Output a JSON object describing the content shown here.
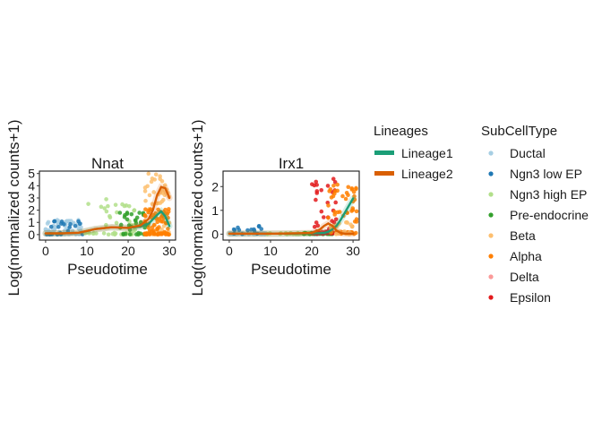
{
  "ylabel_shared": "Log(normalized counts+1)",
  "chart_data": [
    {
      "type": "scatter",
      "title": "Nnat",
      "xlabel": "Pseudotime",
      "ylabel": "Log(normalized counts+1)",
      "xlim": [
        -1.5,
        31.5
      ],
      "ylim": [
        -0.45,
        5.2
      ],
      "xticks": [
        0,
        10,
        20,
        30
      ],
      "yticks": [
        0,
        1,
        2,
        3,
        4,
        5
      ],
      "grid": false,
      "series": [
        {
          "name": "Ductal",
          "color": "#a6cee3",
          "xrange": [
            0,
            9
          ],
          "yrange": [
            0,
            1.2
          ],
          "n": 70
        },
        {
          "name": "Ngn3 low EP",
          "color": "#1f78b4",
          "xrange": [
            0,
            9
          ],
          "yrange": [
            0,
            1.1
          ],
          "n": 22
        },
        {
          "name": "Ngn3 high EP",
          "color": "#b2df8a",
          "xrange": [
            9,
            22
          ],
          "yrange": [
            0,
            3.0
          ],
          "n": 45
        },
        {
          "name": "Pre-endocrine",
          "color": "#33a02c",
          "xrange": [
            18,
            25
          ],
          "yrange": [
            0,
            2.0
          ],
          "n": 35
        },
        {
          "name": "Beta",
          "color": "#fdbf6f",
          "xrange": [
            24,
            30
          ],
          "yrange": [
            0,
            5.0
          ],
          "n": 70
        },
        {
          "name": "Alpha",
          "color": "#ff7f00",
          "xrange": [
            24,
            30
          ],
          "yrange": [
            0,
            2.2
          ],
          "n": 70
        }
      ],
      "lines": [
        {
          "name": "Lineage1",
          "color": "#1b9e77",
          "x": [
            0,
            4,
            8,
            12,
            16,
            20,
            23,
            25,
            27,
            28,
            29,
            30
          ],
          "y": [
            0.1,
            0.1,
            0.15,
            0.45,
            0.6,
            0.55,
            0.65,
            0.9,
            1.6,
            1.9,
            1.5,
            0.7
          ]
        },
        {
          "name": "Lineage2",
          "color": "#d95f02",
          "x": [
            0,
            4,
            8,
            12,
            16,
            20,
            23,
            25,
            26,
            27,
            28,
            29,
            30
          ],
          "y": [
            0.1,
            0.1,
            0.15,
            0.45,
            0.6,
            0.55,
            0.75,
            1.3,
            2.0,
            3.2,
            3.9,
            3.8,
            3.0
          ]
        }
      ]
    },
    {
      "type": "scatter",
      "title": "Irx1",
      "xlabel": "Pseudotime",
      "ylabel": "Log(normalized counts+1)",
      "xlim": [
        -1.5,
        31.5
      ],
      "ylim": [
        -0.25,
        2.65
      ],
      "xticks": [
        0,
        10,
        20,
        30
      ],
      "yticks": [
        0,
        1,
        2
      ],
      "grid": false,
      "series": [
        {
          "name": "Ductal",
          "color": "#a6cee3",
          "xrange": [
            0,
            9
          ],
          "yrange": [
            0,
            0.05
          ],
          "n": 60
        },
        {
          "name": "Ngn3 low EP",
          "color": "#1f78b4",
          "xrange": [
            0,
            9
          ],
          "yrange": [
            0,
            0.35
          ],
          "n": 14
        },
        {
          "name": "Ngn3 high EP",
          "color": "#b2df8a",
          "xrange": [
            9,
            22
          ],
          "yrange": [
            0,
            0.05
          ],
          "n": 40
        },
        {
          "name": "Pre-endocrine",
          "color": "#33a02c",
          "xrange": [
            18,
            25
          ],
          "yrange": [
            0,
            0.05
          ],
          "n": 30
        },
        {
          "name": "Epsilon",
          "color": "#e31a1c",
          "xrange": [
            20,
            26
          ],
          "yrange": [
            0,
            2.4
          ],
          "n": 50
        },
        {
          "name": "Alpha",
          "color": "#ff7f00",
          "xrange": [
            24,
            31
          ],
          "yrange": [
            0,
            2.1
          ],
          "n": 60
        },
        {
          "name": "Beta",
          "color": "#fdbf6f",
          "xrange": [
            24,
            30
          ],
          "yrange": [
            0,
            0.5
          ],
          "n": 30
        }
      ],
      "lines": [
        {
          "name": "Lineage1",
          "color": "#1b9e77",
          "x": [
            0,
            5,
            10,
            15,
            20,
            23,
            24,
            25,
            26,
            27,
            28,
            29,
            30
          ],
          "y": [
            0.02,
            0.02,
            0.02,
            0.02,
            0.03,
            0.05,
            0.1,
            0.2,
            0.35,
            0.6,
            0.9,
            1.2,
            1.5
          ]
        },
        {
          "name": "Lineage2",
          "color": "#d95f02",
          "x": [
            0,
            5,
            10,
            15,
            20,
            22,
            23,
            24,
            25,
            26,
            27,
            28,
            30
          ],
          "y": [
            0.02,
            0.02,
            0.02,
            0.03,
            0.05,
            0.2,
            0.35,
            0.45,
            0.35,
            0.15,
            0.05,
            0.02,
            0.02
          ]
        }
      ]
    }
  ],
  "legend_lineages": {
    "title": "Lineages",
    "items": [
      {
        "label": "Lineage1",
        "color": "#1b9e77"
      },
      {
        "label": "Lineage2",
        "color": "#d95f02"
      }
    ]
  },
  "legend_celltypes": {
    "title": "SubCellType",
    "items": [
      {
        "label": "Ductal",
        "color": "#a6cee3"
      },
      {
        "label": "Ngn3 low EP",
        "color": "#1f78b4"
      },
      {
        "label": "Ngn3 high EP",
        "color": "#b2df8a"
      },
      {
        "label": "Pre-endocrine",
        "color": "#33a02c"
      },
      {
        "label": "Beta",
        "color": "#fdbf6f"
      },
      {
        "label": "Alpha",
        "color": "#ff7f00"
      },
      {
        "label": "Delta",
        "color": "#fb9a99"
      },
      {
        "label": "Epsilon",
        "color": "#e31a1c"
      }
    ]
  }
}
